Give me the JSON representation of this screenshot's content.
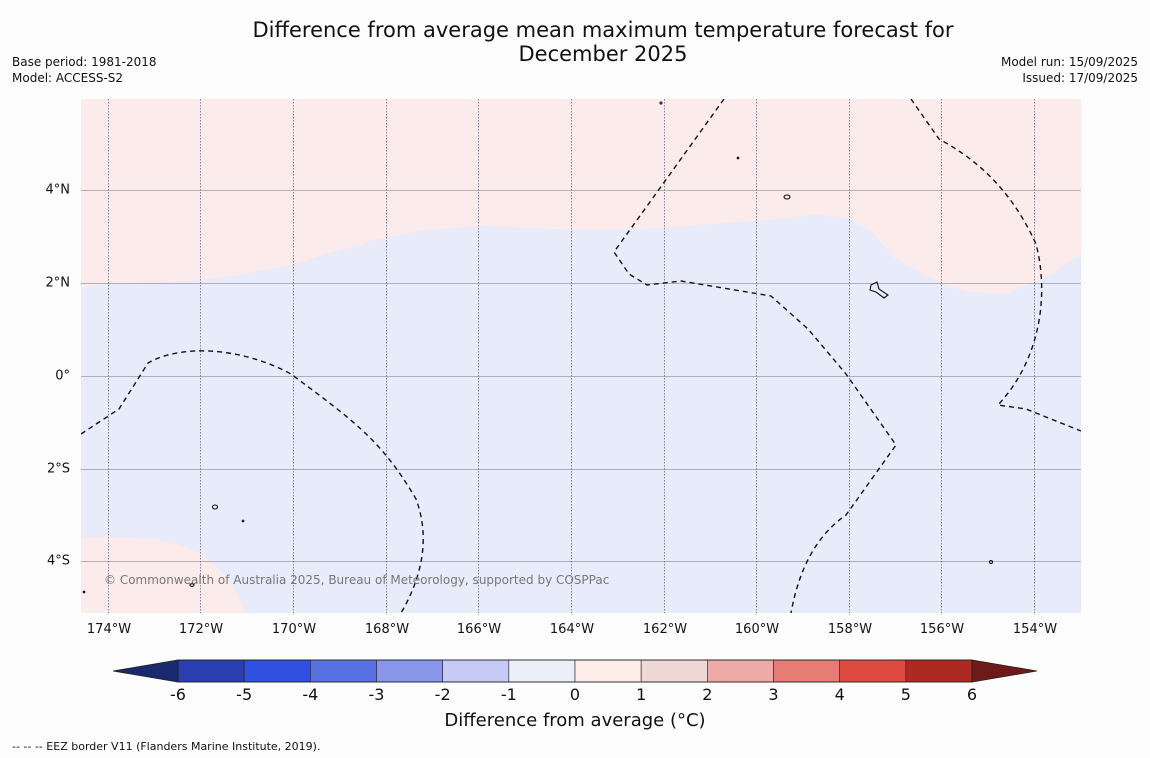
{
  "title": "Difference from average mean maximum temperature forecast for December 2025",
  "meta_left": [
    "Base period: 1981-2018",
    "Model: ACCESS-S2"
  ],
  "meta_right": [
    "Model run: 15/09/2025",
    "Issued: 17/09/2025"
  ],
  "lat_labels": [
    "4°N",
    "2°N",
    "0°",
    "2°S",
    "4°S"
  ],
  "lon_labels": [
    "174°W",
    "172°W",
    "170°W",
    "168°W",
    "166°W",
    "164°W",
    "162°W",
    "160°W",
    "158°W",
    "156°W",
    "154°W"
  ],
  "copyright": "© Commonwealth of Australia 2025, Bureau of Meteorology, supported by COSPPac",
  "colorbar": {
    "ticks": [
      "-6",
      "-5",
      "-4",
      "-3",
      "-2",
      "-1",
      "0",
      "1",
      "2",
      "3",
      "4",
      "5",
      "6"
    ],
    "colors": [
      "#1a2a6e",
      "#2a3eb0",
      "#2f50e0",
      "#5870e2",
      "#8896ea",
      "#c5cbf5",
      "#eceef8",
      "#fcede9",
      "#efd8d6",
      "#eeaaa7",
      "#e77c77",
      "#dc4a42",
      "#ad2a22",
      "#6e1a18"
    ],
    "label": "Difference from average (°C)"
  },
  "regions": {
    "cool_color": "#e8ebf9",
    "warm_color": "#fbebea"
  },
  "footnote": "-- -- -- EEZ border V11 (Flanders Marine Institute, 2019)."
}
